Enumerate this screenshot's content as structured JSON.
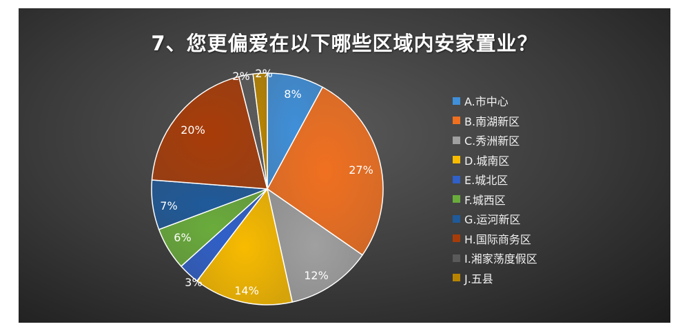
{
  "chart_data": {
    "type": "pie",
    "title": "7、您更偏爱在以下哪些区域内安家置业？",
    "categories": [
      "A.市中心",
      "B.南湖新区",
      "C.秀洲新区",
      "D.城南区",
      "E.城北区",
      " F.城西区",
      "G.运河新区",
      "H.国际商务区",
      "I.湘家荡度假区",
      "J.五县"
    ],
    "values": [
      8,
      27,
      12,
      14,
      3,
      6,
      7,
      20,
      2,
      2
    ],
    "data_labels": [
      "8%",
      "27%",
      "12%",
      "14%",
      "3%",
      "6%",
      "7%",
      "20%",
      "2%",
      "2%"
    ],
    "colors": [
      "#3f8fd9",
      "#f07020",
      "#a0a0a0",
      "#f8bb00",
      "#3060c8",
      "#6aac3c",
      "#1f5a9a",
      "#a83c08",
      "#5a5a5a",
      "#b88400"
    ],
    "legend_position": "right"
  }
}
